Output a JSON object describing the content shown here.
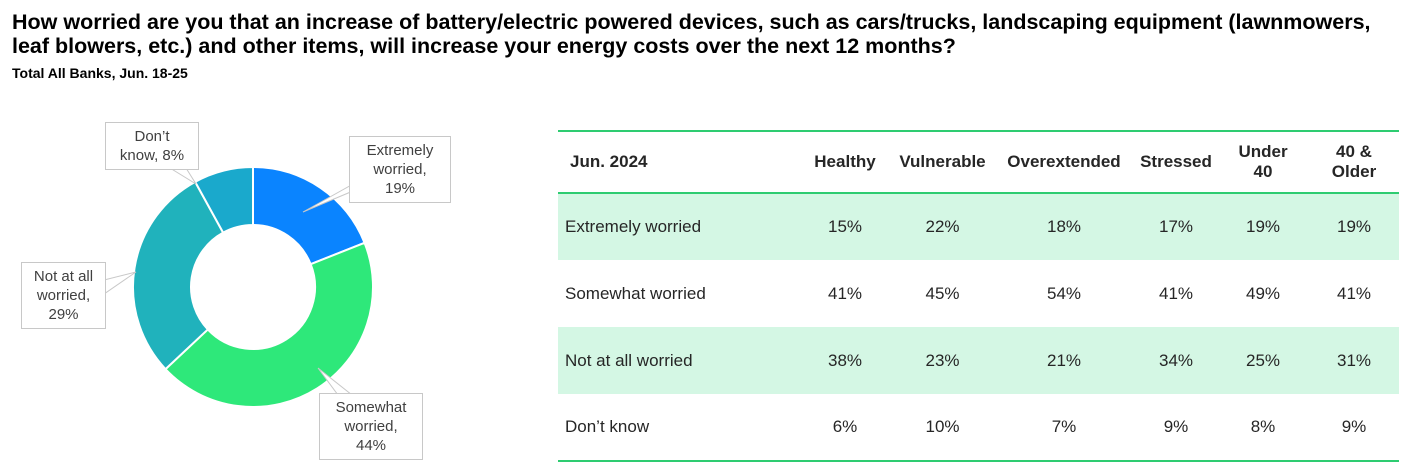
{
  "title": "How worried are you that an increase of battery/electric powered devices, such as cars/trucks, landscaping equipment (lawnmowers, leaf blowers, etc.) and other items, will increase your energy costs over the next 12 months?",
  "subtitle": "Total All Banks, Jun. 18-25",
  "chart_data": [
    {
      "type": "pie",
      "variant": "donut",
      "slices": [
        {
          "label": "Extremely worried",
          "value": 19,
          "color": "#0a84ff",
          "callout": [
            "Extremely",
            "worried,",
            "19%"
          ]
        },
        {
          "label": "Somewhat worried",
          "value": 44,
          "color": "#2ee87a",
          "callout": [
            "Somewhat",
            "worried,",
            "44%"
          ]
        },
        {
          "label": "Not at all worried",
          "value": 29,
          "color": "#20b2bc",
          "callout": [
            "Not at all",
            "worried,",
            "29%"
          ]
        },
        {
          "label": "Don’t know",
          "value": 8,
          "color": "#1aa9cc",
          "callout": [
            "Don’t",
            "know, 8%"
          ]
        }
      ]
    },
    {
      "type": "table",
      "columns": [
        "Jun. 2024",
        "Healthy",
        "Vulnerable",
        "Overextended",
        "Stressed",
        "Under 40",
        "40 & Older"
      ],
      "header_lines": [
        [
          "Jun. 2024"
        ],
        [
          "Healthy"
        ],
        [
          "Vulnerable"
        ],
        [
          "Overextended"
        ],
        [
          "Stressed"
        ],
        [
          "Under",
          "40"
        ],
        [
          "40 &",
          "Older"
        ]
      ],
      "rows": [
        [
          "Extremely worried",
          "15%",
          "22%",
          "18%",
          "17%",
          "19%",
          "19%"
        ],
        [
          "Somewhat worried",
          "41%",
          "45%",
          "54%",
          "41%",
          "49%",
          "41%"
        ],
        [
          "Not at all worried",
          "38%",
          "23%",
          "21%",
          "34%",
          "25%",
          "31%"
        ],
        [
          "Don’t know",
          "6%",
          "10%",
          "7%",
          "9%",
          "8%",
          "9%"
        ]
      ]
    }
  ]
}
